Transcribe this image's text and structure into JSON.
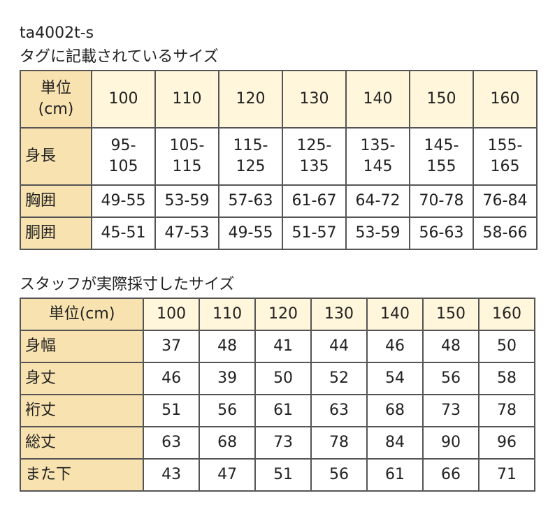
{
  "product_code": "ta4002t-s",
  "tag_section": {
    "title": "タグに記載されているサイズ",
    "header_label_line1": "単位",
    "header_label_line2": "(cm)",
    "sizes": [
      "100",
      "110",
      "120",
      "130",
      "140",
      "150",
      "160"
    ],
    "rows": [
      {
        "label": "身長",
        "values": [
          [
            "95-",
            "105"
          ],
          [
            "105-",
            "115"
          ],
          [
            "115-",
            "125"
          ],
          [
            "125-",
            "135"
          ],
          [
            "135-",
            "145"
          ],
          [
            "145-",
            "155"
          ],
          [
            "155-",
            "165"
          ]
        ]
      },
      {
        "label": "胸囲",
        "values": [
          "49-55",
          "53-59",
          "57-63",
          "61-67",
          "64-72",
          "70-78",
          "76-84"
        ]
      },
      {
        "label": "胴囲",
        "values": [
          "45-51",
          "47-53",
          "49-55",
          "51-57",
          "53-59",
          "56-63",
          "58-66"
        ]
      }
    ]
  },
  "measured_section": {
    "title": "スタッフが実際採寸したサイズ",
    "header_label": "単位(cm)",
    "sizes": [
      "100",
      "110",
      "120",
      "130",
      "140",
      "150",
      "160"
    ],
    "rows": [
      {
        "label": "身幅",
        "values": [
          "37",
          "48",
          "41",
          "44",
          "46",
          "48",
          "50"
        ]
      },
      {
        "label": "身丈",
        "values": [
          "46",
          "39",
          "50",
          "52",
          "54",
          "56",
          "58"
        ]
      },
      {
        "label": "裄丈",
        "values": [
          "51",
          "56",
          "61",
          "63",
          "68",
          "73",
          "78"
        ]
      },
      {
        "label": "総丈",
        "values": [
          "63",
          "68",
          "73",
          "78",
          "84",
          "90",
          "96"
        ]
      },
      {
        "label": "また下",
        "values": [
          "43",
          "47",
          "51",
          "56",
          "61",
          "66",
          "71"
        ]
      }
    ]
  },
  "colors": {
    "header_fill": "#f8e2b0",
    "size_header_fill": "#fff6dc",
    "cell_fill": "#ffffff",
    "border": "#555555"
  }
}
